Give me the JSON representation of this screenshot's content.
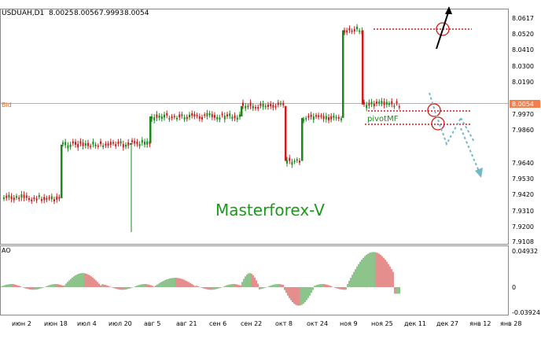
{
  "symbol_header": {
    "symbol": "USDUAH,D1",
    "open": "8.0025",
    "high": "8.0056",
    "low": "7.9993",
    "close": "8.0054"
  },
  "bid_label": "Bid",
  "price_axis_labels": [
    "8.0617",
    "8.0520",
    "8.0410",
    "8.0300",
    "8.0190",
    "8.0054",
    "7.9970",
    "7.9860",
    "7.9640",
    "7.9530",
    "7.9420",
    "7.9310",
    "7.9200",
    "7.9108"
  ],
  "current_price": "8.0054",
  "ao_label": "AO",
  "ao_axis_labels": [
    "0.04932",
    "0",
    "-0.03924"
  ],
  "time_axis_labels": [
    "июн 2",
    "июн 18",
    "июл 4",
    "июл 20",
    "авг 5",
    "авг 21",
    "сен 6",
    "сен 22",
    "окт 8",
    "окт 24",
    "ноя 9",
    "ноя 25",
    "дек 11",
    "дек 27",
    "янв 12",
    "янв 28"
  ],
  "watermark": "Masterforex-V",
  "annotation_pivot": "pivotMF",
  "colors": {
    "bull": "#1a8a1a",
    "bear": "#c81e1e",
    "bid_line": "#f0a070",
    "annotation_red": "#d01818",
    "forecast_blue": "#70b8c8"
  },
  "chart_data": {
    "type": "candlestick",
    "title": "USDUAH,D1",
    "price_range": [
      7.9108,
      8.0617
    ],
    "ao_range": [
      -0.03924,
      0.04932
    ],
    "price_levels": [
      8.0054,
      7.997,
      7.99,
      8.055
    ],
    "candles_blocks": [
      {
        "from_label": "июн 2",
        "to_label": "июн 18",
        "level": 7.94
      },
      {
        "from_label": "июн 18",
        "to_label": "июл 20",
        "level": 7.976
      },
      {
        "from_label": "июл 20",
        "to_label": "авг 5",
        "level": 7.977
      },
      {
        "from_label": "авг 5",
        "to_label": "сен 22",
        "level": 7.995
      },
      {
        "from_label": "сен 22",
        "to_label": "окт 8",
        "level": 8.002
      },
      {
        "from_label": "окт 8",
        "to_label": "окт 24",
        "level": 7.965
      },
      {
        "from_label": "окт 24",
        "to_label": "ноя 9",
        "level": 7.994
      },
      {
        "from_label": "ноя 9",
        "to_label": "ноя 25",
        "level": 8.053
      },
      {
        "from_label": "ноя 25",
        "to_label": "дек 11",
        "level": 8.003
      }
    ]
  }
}
